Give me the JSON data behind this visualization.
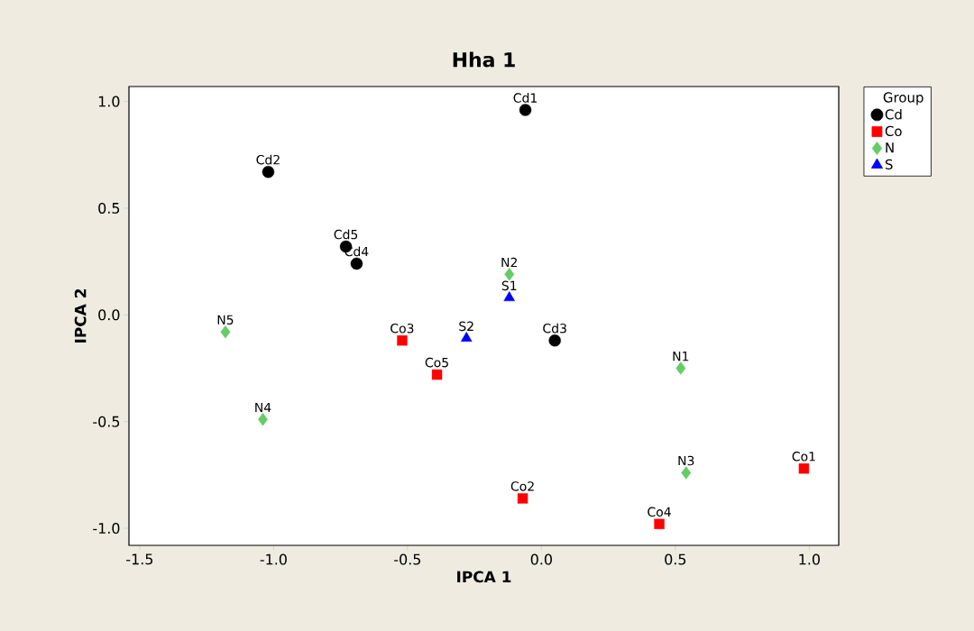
{
  "chart_data": {
    "type": "scatter",
    "title": "Hha 1",
    "xlabel": "IPCA 1",
    "ylabel": "IPCA 2",
    "legend_title": "Group",
    "legend": "top right",
    "grid": false,
    "xlim": [
      -1.54,
      1.11
    ],
    "ylim": [
      -1.08,
      1.07
    ],
    "xticks": [
      {
        "value": -1.5,
        "label": "-1.5"
      },
      {
        "value": -1.0,
        "label": "-1.0"
      },
      {
        "value": -0.5,
        "label": "-0.5"
      },
      {
        "value": 0.0,
        "label": "0.0"
      },
      {
        "value": 0.5,
        "label": "0.5"
      },
      {
        "value": 1.0,
        "label": "1.0"
      }
    ],
    "yticks": [
      {
        "value": -1.0,
        "label": "-1.0"
      },
      {
        "value": -0.5,
        "label": "-0.5"
      },
      {
        "value": 0.0,
        "label": "0.0"
      },
      {
        "value": 0.5,
        "label": "0.5"
      },
      {
        "value": 1.0,
        "label": "1.0"
      }
    ],
    "series": [
      {
        "name": "Cd",
        "color": "#000000",
        "marker": "circle",
        "x": [
          -0.06,
          -1.02,
          0.05,
          -0.69,
          -0.73
        ],
        "values": [
          0.96,
          0.67,
          -0.12,
          0.24,
          0.32
        ]
      },
      {
        "name": "Co",
        "color": "#ff0000",
        "marker": "square",
        "x": [
          0.98,
          -0.07,
          -0.52,
          0.44,
          -0.39
        ],
        "values": [
          -0.72,
          -0.86,
          -0.12,
          -0.98,
          -0.28
        ]
      },
      {
        "name": "N",
        "color": "#66cc66",
        "marker": "diamond",
        "x": [
          0.52,
          -0.12,
          0.54,
          -1.04,
          -1.18
        ],
        "values": [
          -0.25,
          0.19,
          -0.74,
          -0.49,
          -0.08
        ]
      },
      {
        "name": "S",
        "color": "#0000ff",
        "marker": "triangle",
        "x": [
          -0.12,
          -0.28
        ],
        "values": [
          0.08,
          -0.11
        ]
      }
    ],
    "annotations": [
      {
        "text": "Cd1",
        "x": -0.06,
        "y": 0.96
      },
      {
        "text": "Cd2",
        "x": -1.02,
        "y": 0.67
      },
      {
        "text": "Cd3",
        "x": 0.05,
        "y": -0.12
      },
      {
        "text": "Cd4",
        "x": -0.69,
        "y": 0.24
      },
      {
        "text": "Cd5",
        "x": -0.73,
        "y": 0.32
      },
      {
        "text": "Co1",
        "x": 0.98,
        "y": -0.72
      },
      {
        "text": "Co2",
        "x": -0.07,
        "y": -0.86
      },
      {
        "text": "Co3",
        "x": -0.52,
        "y": -0.12
      },
      {
        "text": "Co4",
        "x": 0.44,
        "y": -0.98
      },
      {
        "text": "Co5",
        "x": -0.39,
        "y": -0.28
      },
      {
        "text": "N1",
        "x": 0.52,
        "y": -0.25
      },
      {
        "text": "N2",
        "x": -0.12,
        "y": 0.19
      },
      {
        "text": "N3",
        "x": 0.54,
        "y": -0.74
      },
      {
        "text": "N4",
        "x": -1.04,
        "y": -0.49
      },
      {
        "text": "N5",
        "x": -1.18,
        "y": -0.08
      },
      {
        "text": "S1",
        "x": -0.12,
        "y": 0.08
      },
      {
        "text": "S2",
        "x": -0.28,
        "y": -0.11
      }
    ]
  }
}
